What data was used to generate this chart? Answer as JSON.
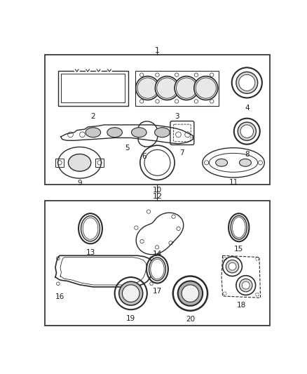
{
  "background_color": "#ffffff",
  "line_color": "#2a2a2a",
  "text_color": "#1a1a1a",
  "fig_w": 4.38,
  "fig_h": 5.33,
  "dpi": 100
}
